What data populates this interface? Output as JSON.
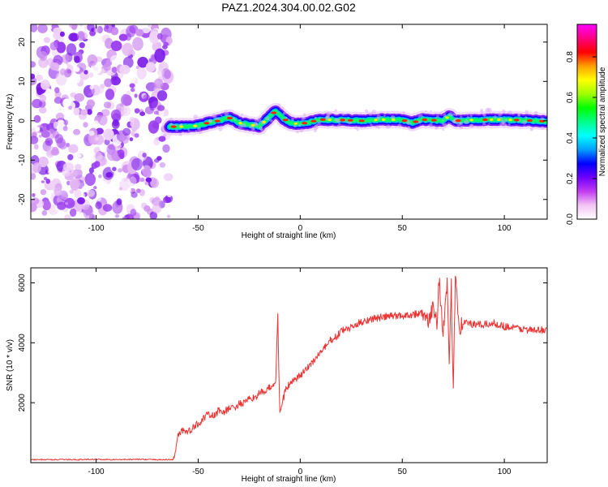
{
  "figure": {
    "title": "PAZ1.2024.304.00.02.G02"
  },
  "chart_data": [
    {
      "type": "heatmap",
      "title": "PAZ1.2024.304.00.02.G02",
      "xlabel": "Height of straight line (km)",
      "ylabel": "Frequency (Hz)",
      "xlim": [
        -132,
        121
      ],
      "ylim": [
        -25,
        24.5
      ],
      "x_ticks": [
        -100,
        -50,
        0,
        50,
        100
      ],
      "x_tick_labels": [
        "-100",
        "-50",
        "0",
        "50",
        "100"
      ],
      "y_ticks": [
        -20,
        -10,
        0,
        10,
        20
      ],
      "y_tick_labels": [
        "-20",
        "-10",
        "0",
        "10",
        "20"
      ],
      "noise_region_x": [
        -132,
        -64
      ],
      "signal_start_x": -64,
      "signal_track": [
        {
          "x": -64,
          "freq": -1.5
        },
        {
          "x": -55,
          "freq": -1.5
        },
        {
          "x": -50,
          "freq": -1.2
        },
        {
          "x": -45,
          "freq": -0.5
        },
        {
          "x": -40,
          "freq": 0
        },
        {
          "x": -35,
          "freq": 0.8
        },
        {
          "x": -30,
          "freq": -0.5
        },
        {
          "x": -25,
          "freq": -1.0
        },
        {
          "x": -20,
          "freq": -1.4
        },
        {
          "x": -15,
          "freq": 1.0
        },
        {
          "x": -12,
          "freq": 2.5
        },
        {
          "x": -8,
          "freq": 0.5
        },
        {
          "x": -5,
          "freq": -0.6
        },
        {
          "x": 0,
          "freq": -0.8
        },
        {
          "x": 5,
          "freq": -0.3
        },
        {
          "x": 10,
          "freq": 0.3
        },
        {
          "x": 20,
          "freq": 0.2
        },
        {
          "x": 30,
          "freq": 0
        },
        {
          "x": 40,
          "freq": 0.3
        },
        {
          "x": 50,
          "freq": 0.2
        },
        {
          "x": 55,
          "freq": -0.5
        },
        {
          "x": 60,
          "freq": 0.3
        },
        {
          "x": 70,
          "freq": 0
        },
        {
          "x": 73,
          "freq": 1.2
        },
        {
          "x": 76,
          "freq": 0
        },
        {
          "x": 85,
          "freq": 0.2
        },
        {
          "x": 95,
          "freq": 0.3
        },
        {
          "x": 105,
          "freq": 0.2
        },
        {
          "x": 115,
          "freq": 0
        },
        {
          "x": 121,
          "freq": -0.2
        }
      ],
      "colorbar": {
        "label": "Normalized spectral amplitude",
        "range": [
          0,
          0.96
        ],
        "ticks": [
          0.0,
          0.2,
          0.4,
          0.6,
          0.8
        ],
        "tick_labels": [
          "0.0",
          "0.2",
          "0.4",
          "0.6",
          "0.8"
        ],
        "stops": [
          "#ffffff",
          "#f3c4f5",
          "#c23cf0",
          "#6f00ff",
          "#0000ff",
          "#00a0ff",
          "#00ffff",
          "#00ff88",
          "#00ff00",
          "#a0ff00",
          "#ffff00",
          "#ffa000",
          "#ff0000",
          "#ff0080",
          "#ff00ff"
        ]
      }
    },
    {
      "type": "line",
      "xlabel": "Height of straight line (km)",
      "ylabel": "SNR (10 * v/v)",
      "xlim": [
        -132,
        121
      ],
      "ylim": [
        0,
        6500
      ],
      "x_ticks": [
        -100,
        -50,
        0,
        50,
        100
      ],
      "x_tick_labels": [
        "-100",
        "-50",
        "0",
        "50",
        "100"
      ],
      "y_ticks": [
        2000,
        4000,
        6000
      ],
      "y_tick_labels": [
        "2000",
        "4000",
        "6000"
      ],
      "color": "#ee3333",
      "series": [
        {
          "x": [
            -132,
            -120,
            -110,
            -100,
            -90,
            -80,
            -70,
            -62,
            -60,
            -58,
            -55,
            -52,
            -50,
            -47,
            -45,
            -42,
            -40,
            -37,
            -35,
            -32,
            -30,
            -27,
            -25,
            -22,
            -20,
            -17,
            -15,
            -12,
            -11,
            -10,
            -9,
            -8,
            -7,
            -5,
            -2,
            0,
            3,
            5,
            8,
            10,
            13,
            15,
            18,
            20,
            25,
            30,
            35,
            40,
            45,
            50,
            55,
            60,
            63,
            65,
            67,
            68,
            70,
            72,
            73,
            74,
            75,
            76,
            78,
            80,
            85,
            90,
            95,
            100,
            105,
            110,
            115,
            121
          ],
          "y": [
            100,
            100,
            100,
            110,
            100,
            110,
            100,
            100,
            900,
            1100,
            1000,
            1200,
            1300,
            1500,
            1600,
            1550,
            1750,
            1700,
            1800,
            1850,
            1950,
            2000,
            2100,
            2200,
            2300,
            2400,
            2500,
            2700,
            4900,
            1600,
            2000,
            2200,
            2500,
            2600,
            2800,
            2900,
            3100,
            3300,
            3500,
            3700,
            3900,
            4100,
            4200,
            4400,
            4500,
            4700,
            4800,
            4850,
            4900,
            4900,
            4950,
            5000,
            4600,
            5300,
            4700,
            6200,
            4300,
            6000,
            3000,
            5900,
            2400,
            6400,
            4500,
            4700,
            4600,
            4600,
            4650,
            4550,
            4500,
            4450,
            4400,
            4450
          ]
        }
      ]
    }
  ]
}
